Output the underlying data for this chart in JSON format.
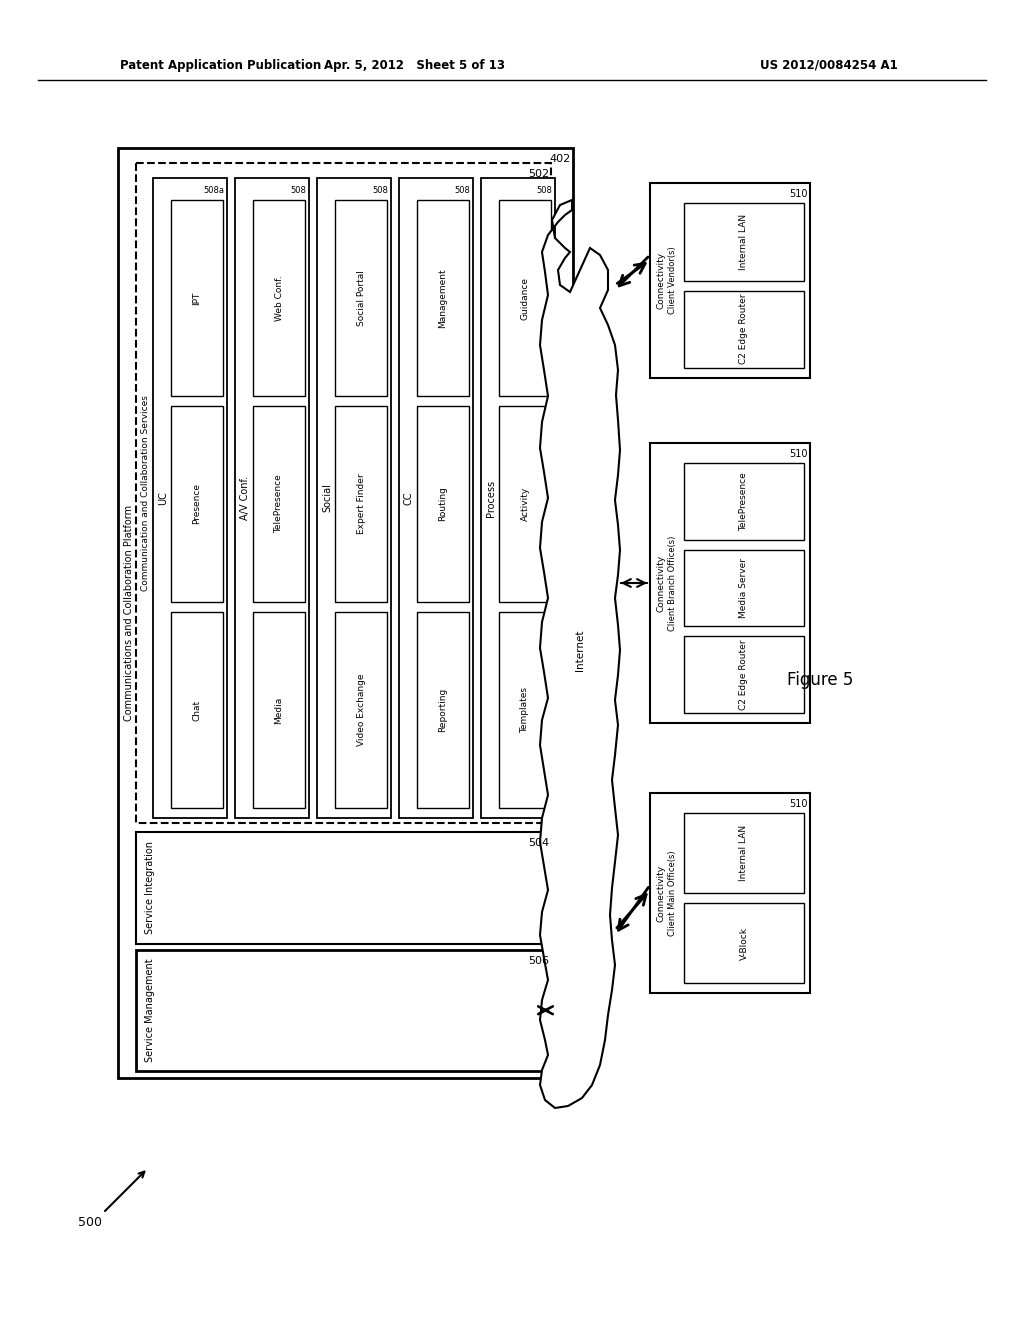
{
  "header_left": "Patent Application Publication",
  "header_mid": "Apr. 5, 2012   Sheet 5 of 13",
  "header_right": "US 2012/0084254 A1",
  "figure_label": "Figure 5",
  "bg_color": "#ffffff",
  "label_500": "500",
  "label_402": "402",
  "label_502": "502",
  "label_504": "504",
  "label_506": "506",
  "label_510": "510",
  "outer_box_label": "Communications and Collaboration Platform",
  "inner_box_label": "Communication and Collaboration Services",
  "service_integration_label": "Service Integration",
  "service_management_label": "Service Management",
  "internet_label": "Internet",
  "groups": [
    {
      "header": "UC",
      "subheader": "508a",
      "items": [
        "IPT",
        "Presence",
        "Chat"
      ]
    },
    {
      "header": "A/V Conf.",
      "subheader": "508",
      "items": [
        "Web Conf.",
        "TelePresence",
        "Media"
      ]
    },
    {
      "header": "Social",
      "subheader": "508",
      "items": [
        "Social Portal",
        "Expert Finder",
        "Video Exchange"
      ]
    },
    {
      "header": "CC",
      "subheader": "508",
      "items": [
        "Management",
        "Routing",
        "Reporting"
      ]
    },
    {
      "header": "Process",
      "subheader": "508",
      "items": [
        "Guidance",
        "Activity",
        "Templates"
      ]
    }
  ],
  "connectivity_boxes": [
    {
      "label": "510",
      "header": "Connectivity",
      "subheader": "Client Vendor(s)",
      "items": [
        "Internal LAN",
        "C2 Edge Router"
      ]
    },
    {
      "label": "510",
      "header": "Connectivity",
      "subheader": "Client Branch Office(s)",
      "items": [
        "TelePresence",
        "Media Server",
        "C2 Edge Router"
      ]
    },
    {
      "label": "510",
      "header": "Connectivity",
      "subheader": "Client Main Office(s)",
      "items": [
        "Internal LAN",
        "V-Block"
      ]
    }
  ]
}
